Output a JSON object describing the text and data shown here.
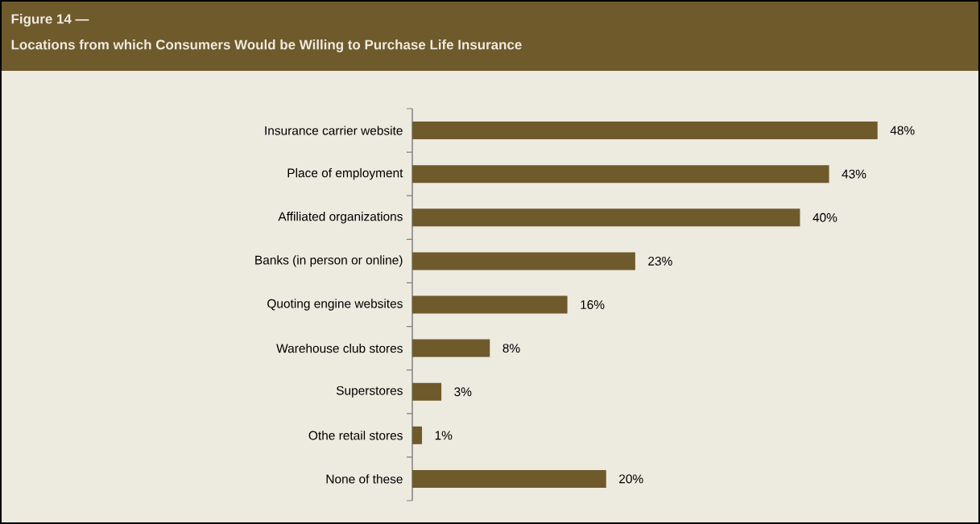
{
  "chart_data": {
    "type": "bar",
    "orientation": "horizontal",
    "title": "Figure 14 —",
    "subtitle": "Locations from which Consumers Would be Willing to Purchase Life Insurance",
    "categories": [
      "Insurance carrier website",
      "Place of employment",
      "Affiliated organizations",
      "Banks (in person or online)",
      "Quoting engine websites",
      "Warehouse club stores",
      "Superstores",
      "Othe retail stores",
      "None of these"
    ],
    "values": [
      48,
      43,
      40,
      23,
      16,
      8,
      3,
      1,
      20
    ],
    "value_labels": [
      "48%",
      "43%",
      "40%",
      "23%",
      "16%",
      "8%",
      "3%",
      "1%",
      "20%"
    ],
    "color": "#6f5a2c"
  }
}
